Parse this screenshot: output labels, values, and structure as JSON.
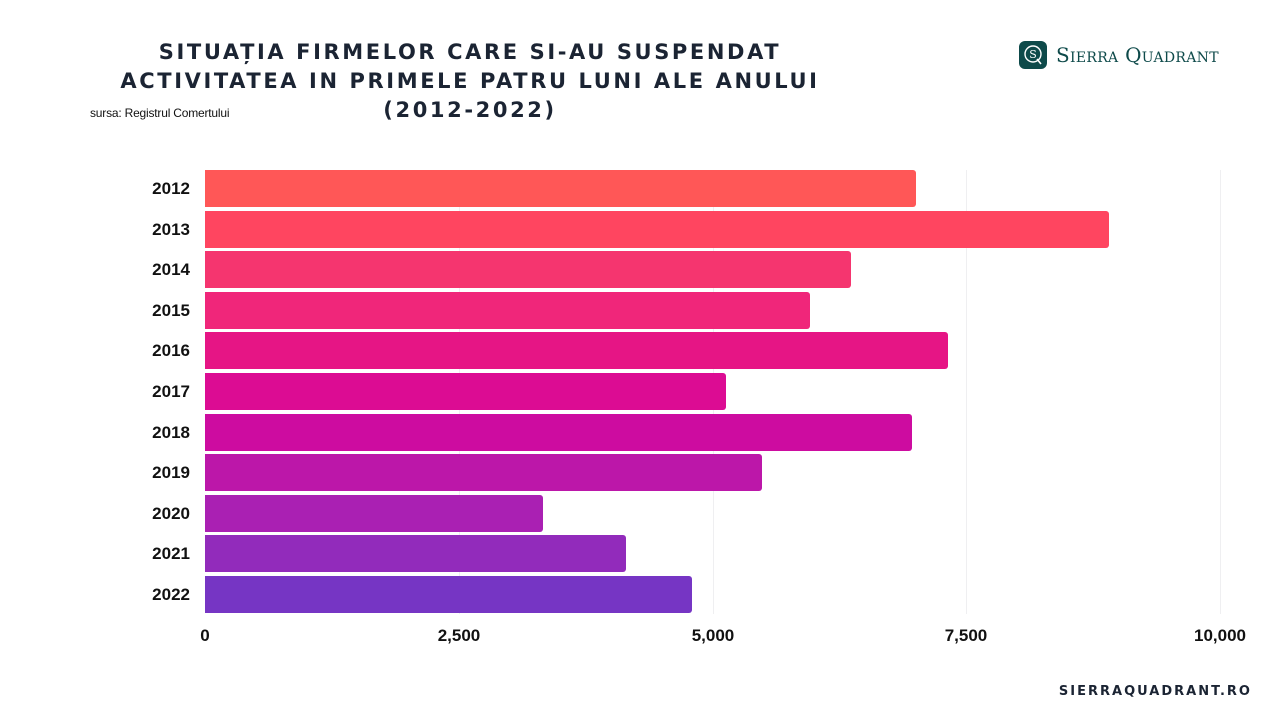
{
  "header": {
    "title_lines": [
      "SITUAȚIA FIRMELOR CARE SI-AU SUSPENDAT",
      "ACTIVITATEA IN PRIMELE PATRU LUNI ALE ANULUI",
      "(2012-2022)"
    ],
    "source": "sursa: Registrul Comertului"
  },
  "logo": {
    "icon": "q-monogram-icon",
    "text": "Sierra Quadrant",
    "color": "#0e4a4a"
  },
  "footer": {
    "website": "SIERRAQUADRANT.RO"
  },
  "chart_data": {
    "type": "bar",
    "orientation": "horizontal",
    "title": "Situația firmelor care si-au suspendat activitatea in primele patru luni ale anului (2012-2022)",
    "subtitle": "sursa: Registrul Comertului",
    "xlabel": "",
    "ylabel": "",
    "categories": [
      "2012",
      "2013",
      "2014",
      "2015",
      "2016",
      "2017",
      "2018",
      "2019",
      "2020",
      "2021",
      "2022"
    ],
    "values": [
      7005,
      8906,
      6365,
      5961,
      7320,
      5133,
      6966,
      5488,
      3330,
      4148,
      4798
    ],
    "colors": [
      "#ff5757",
      "#ff4560",
      "#f5356f",
      "#f0267a",
      "#e61585",
      "#dc0c93",
      "#cd0ca0",
      "#bc17a9",
      "#aa20b3",
      "#922bbb",
      "#7635c4"
    ],
    "xlim": [
      0,
      10000
    ],
    "xticks": [
      0,
      2500,
      5000,
      7500,
      10000
    ],
    "xtick_labels": [
      "0",
      "2,500",
      "5,000",
      "7,500",
      "10,000"
    ],
    "grid": "vertical",
    "legend": "none"
  }
}
